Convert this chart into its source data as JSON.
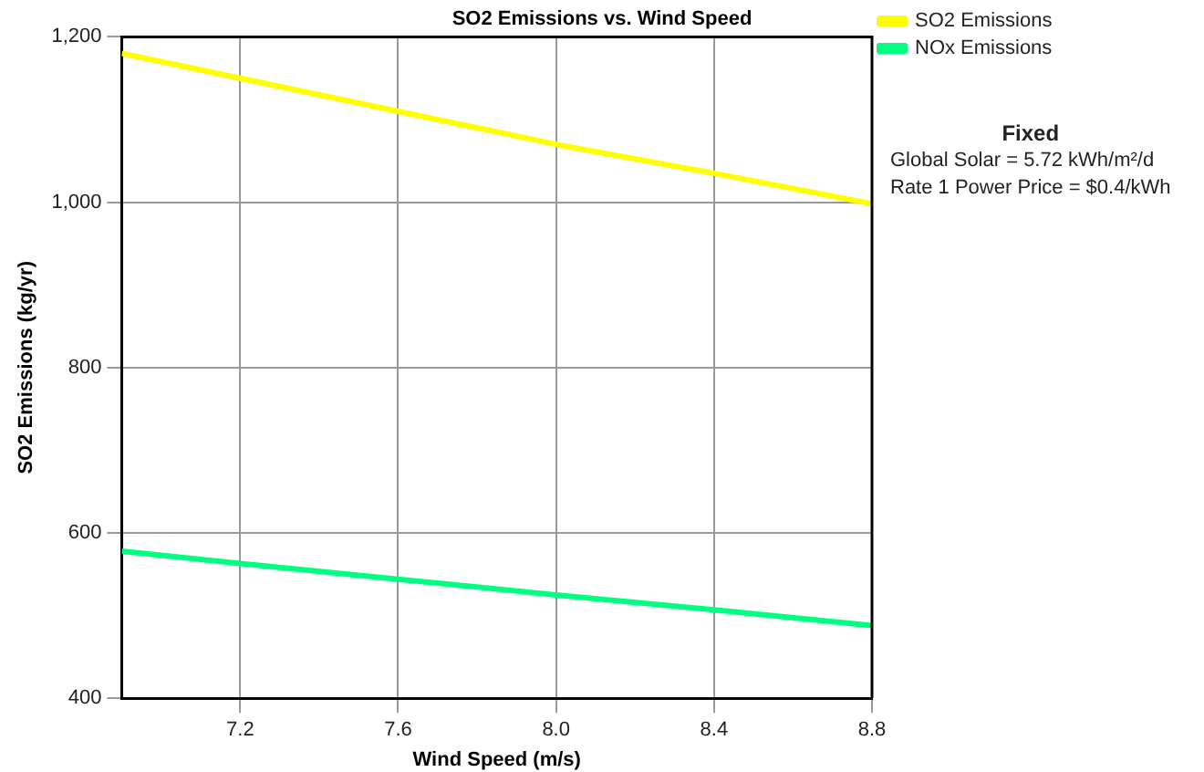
{
  "chart_data": {
    "type": "line",
    "title": "SO2 Emissions vs. Wind Speed",
    "xlabel": "Wind Speed (m/s)",
    "ylabel": "SO2 Emissions (kg/yr)",
    "x": [
      6.9,
      7.2,
      7.6,
      8.0,
      8.4,
      8.8
    ],
    "series": [
      {
        "name": "SO2 Emissions",
        "color": "#ffff00",
        "values": [
          1180,
          1150,
          1110,
          1070,
          1035,
          998
        ]
      },
      {
        "name": "NOx Emissions",
        "color": "#00ff80",
        "values": [
          578,
          563,
          544,
          525,
          507,
          488
        ]
      }
    ],
    "xlim": [
      6.9,
      8.8
    ],
    "xticks": [
      7.2,
      7.6,
      {
        "value": 8.0,
        "label": "8.0"
      },
      8.4,
      8.8
    ],
    "ylim": [
      400,
      1200
    ],
    "yticks": [
      400,
      600,
      800,
      {
        "value": 1000,
        "label": "1,000"
      },
      {
        "value": 1200,
        "label": "1,200"
      }
    ],
    "grid": true,
    "legend": "top right",
    "marker": "none",
    "line_style": "solid",
    "annotations": [
      "Fixed",
      "Global Solar = 5.72 kWh/m²/d",
      "Rate 1 Power Price = $0.4/kWh"
    ]
  }
}
